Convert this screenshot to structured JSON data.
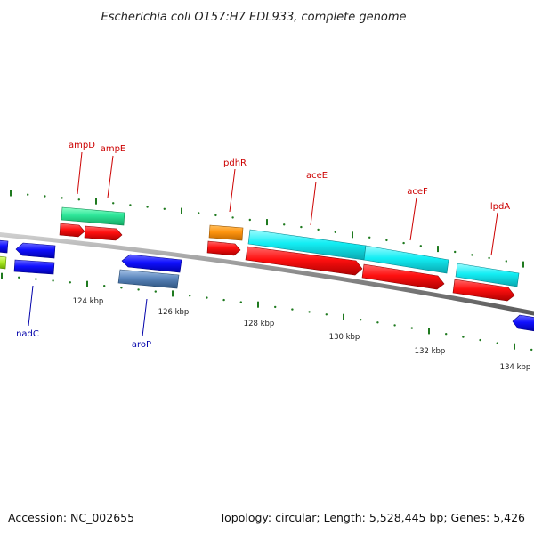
{
  "title": "Escherichia coli O157:H7 EDL933, complete genome",
  "footer": {
    "accession": "Accession: NC_002655",
    "summary": "Topology: circular; Length: 5,528,445 bp; Genes: 5,426"
  },
  "colors": {
    "forward_label": "#cc0000",
    "reverse_label": "#0000aa",
    "backbone": "#8a8a8a",
    "tick": "#1f7a1f"
  },
  "scale_labels": [
    "124 kbp",
    "126 kbp",
    "128 kbp",
    "130 kbp",
    "132 kbp",
    "134 kbp"
  ],
  "genes": {
    "forward": [
      "ampD",
      "ampE",
      "pdhR",
      "aceE",
      "aceF",
      "lpdA"
    ],
    "reverse": [
      "nadC",
      "aroP"
    ]
  }
}
